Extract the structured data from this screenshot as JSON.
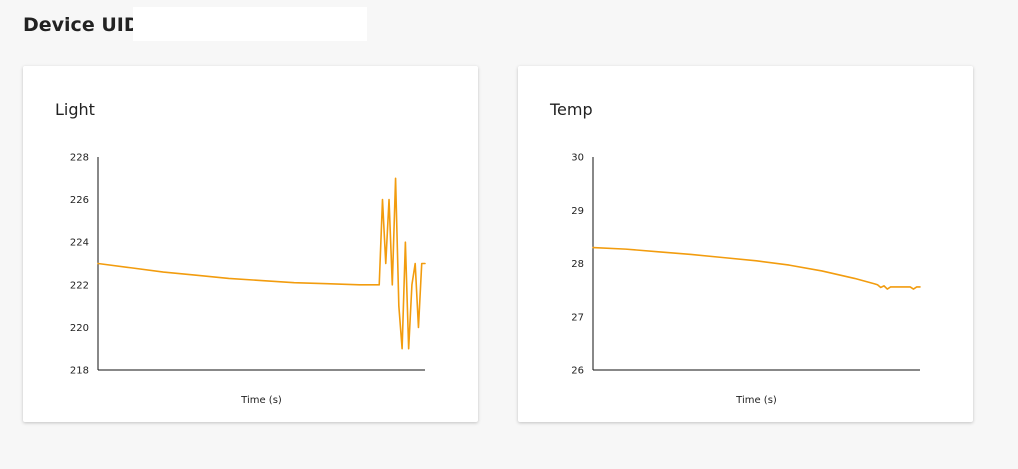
{
  "header": {
    "label": "Device UID:",
    "uid_value": ""
  },
  "colors": {
    "series": "#f29c0e",
    "axis": "#111111"
  },
  "chart_data": [
    {
      "type": "line",
      "title": "Light",
      "xlabel": "Time (s)",
      "ylabel": "",
      "ylim": [
        218,
        228
      ],
      "yticks": [
        "218",
        "220",
        "222",
        "224",
        "226",
        "228"
      ],
      "grid": false,
      "x": [
        0,
        0.1,
        0.2,
        0.3,
        0.4,
        0.5,
        0.6,
        0.7,
        0.8,
        0.86,
        0.87,
        0.88,
        0.89,
        0.9,
        0.91,
        0.92,
        0.93,
        0.94,
        0.95,
        0.96,
        0.97,
        0.98,
        0.99,
        1.0
      ],
      "series": [
        {
          "values": [
            223,
            222.8,
            222.6,
            222.45,
            222.3,
            222.2,
            222.1,
            222.05,
            222.0,
            222.0,
            226,
            223,
            226,
            222,
            227,
            221,
            219,
            224,
            219,
            222,
            223,
            220,
            223,
            223
          ]
        }
      ]
    },
    {
      "type": "line",
      "title": "Temp",
      "xlabel": "Time (s)",
      "ylabel": "",
      "ylim": [
        26,
        30
      ],
      "yticks": [
        "26",
        "27",
        "28",
        "29",
        "30"
      ],
      "grid": false,
      "x": [
        0,
        0.1,
        0.2,
        0.3,
        0.4,
        0.5,
        0.6,
        0.7,
        0.8,
        0.86,
        0.87,
        0.88,
        0.89,
        0.9,
        0.91,
        0.92,
        0.93,
        0.94,
        0.95,
        0.96,
        0.97,
        0.98,
        0.99,
        1.0
      ],
      "series": [
        {
          "values": [
            28.3,
            28.27,
            28.22,
            28.17,
            28.11,
            28.05,
            27.97,
            27.86,
            27.72,
            27.62,
            27.6,
            27.55,
            27.58,
            27.52,
            27.56,
            27.56,
            27.56,
            27.56,
            27.56,
            27.56,
            27.56,
            27.52,
            27.56,
            27.56
          ]
        }
      ]
    }
  ]
}
